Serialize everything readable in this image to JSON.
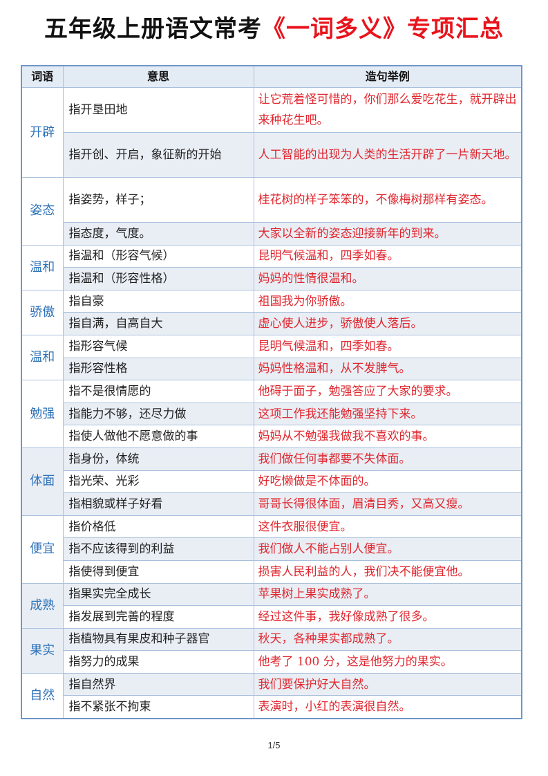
{
  "title": {
    "part1": "五年级上册语文常考",
    "part2": "《一词多义》专项汇总"
  },
  "table": {
    "headers": [
      "词语",
      "意思",
      "造句举例"
    ],
    "groups": [
      {
        "word": "开辟",
        "rows": [
          {
            "meaning": "指开垦田地",
            "example": "让它荒着怪可惜的，你们那么爱吃花生，就开辟出来种花生吧。"
          },
          {
            "meaning": "指开创、开启，象征新的开始",
            "example": "人工智能的出现为人类的生活开辟了一片新天地。"
          }
        ]
      },
      {
        "word": "姿态",
        "rows": [
          {
            "meaning": "指姿势，样子；",
            "example": "桂花树的样子笨笨的，不像梅树那样有姿态。"
          },
          {
            "meaning": "指态度，气度。",
            "example": "大家以全新的姿态迎接新年的到来。"
          }
        ]
      },
      {
        "word": "温和",
        "rows": [
          {
            "meaning": "指温和（形容气候）",
            "example": "昆明气候温和，四季如春。"
          },
          {
            "meaning": "指温和（形容性格）",
            "example": "妈妈的性情很温和。"
          }
        ]
      },
      {
        "word": "骄傲",
        "rows": [
          {
            "meaning": "指自豪",
            "example": "祖国我为你骄傲。"
          },
          {
            "meaning": "指自满，自高自大",
            "example": "虚心使人进步，骄傲使人落后。"
          }
        ]
      },
      {
        "word": "温和",
        "rows": [
          {
            "meaning": "指形容气候",
            "example": "昆明气候温和，四季如春。"
          },
          {
            "meaning": "指形容性格",
            "example": "妈妈性格温和，从不发脾气。"
          }
        ]
      },
      {
        "word": "勉强",
        "rows": [
          {
            "meaning": "指不是很情愿的",
            "example": "他碍于面子，勉强答应了大家的要求。"
          },
          {
            "meaning": "指能力不够，还尽力做",
            "example": "这项工作我还能勉强坚持下来。"
          },
          {
            "meaning": "指使人做他不愿意做的事",
            "example": "妈妈从不勉强我做我不喜欢的事。"
          }
        ]
      },
      {
        "word": "体面",
        "rows": [
          {
            "meaning": "指身份，体统",
            "example": "我们做任何事都要不失体面。"
          },
          {
            "meaning": "指光荣、光彩",
            "example": "好吃懒做是不体面的。"
          },
          {
            "meaning": "指相貌或样子好看",
            "example": "哥哥长得很体面，眉清目秀，又高又瘦。"
          }
        ]
      },
      {
        "word": "便宜",
        "rows": [
          {
            "meaning": "指价格低",
            "example": "这件衣服很便宜。"
          },
          {
            "meaning": "指不应该得到的利益",
            "example": "我们做人不能占别人便宜。"
          },
          {
            "meaning": "指使得到便宜",
            "example": "损害人民利益的人，我们决不能便宜他。"
          }
        ]
      },
      {
        "word": "成熟",
        "rows": [
          {
            "meaning": "指果实完全成长",
            "example": "苹果树上果实成熟了。"
          },
          {
            "meaning": "指发展到完善的程度",
            "example": "经过这件事，我好像成熟了很多。"
          }
        ]
      },
      {
        "word": "果实",
        "rows": [
          {
            "meaning": "指植物具有果皮和种子器官",
            "example": "秋天，各种果实都成熟了。"
          },
          {
            "meaning": "指努力的成果",
            "example": "他考了 100 分，这是他努力的果实。"
          }
        ]
      },
      {
        "word": "自然",
        "rows": [
          {
            "meaning": "指自然界",
            "example": "我们要保护好大自然。"
          },
          {
            "meaning": "指不紧张不拘束",
            "example": "表演时，小红的表演很自然。"
          }
        ]
      }
    ]
  },
  "page_number": "1/5",
  "colors": {
    "title_red": "#e8141c",
    "word_blue": "#2e72b8",
    "example_red": "#e0262e",
    "border": "#6f96c8"
  }
}
